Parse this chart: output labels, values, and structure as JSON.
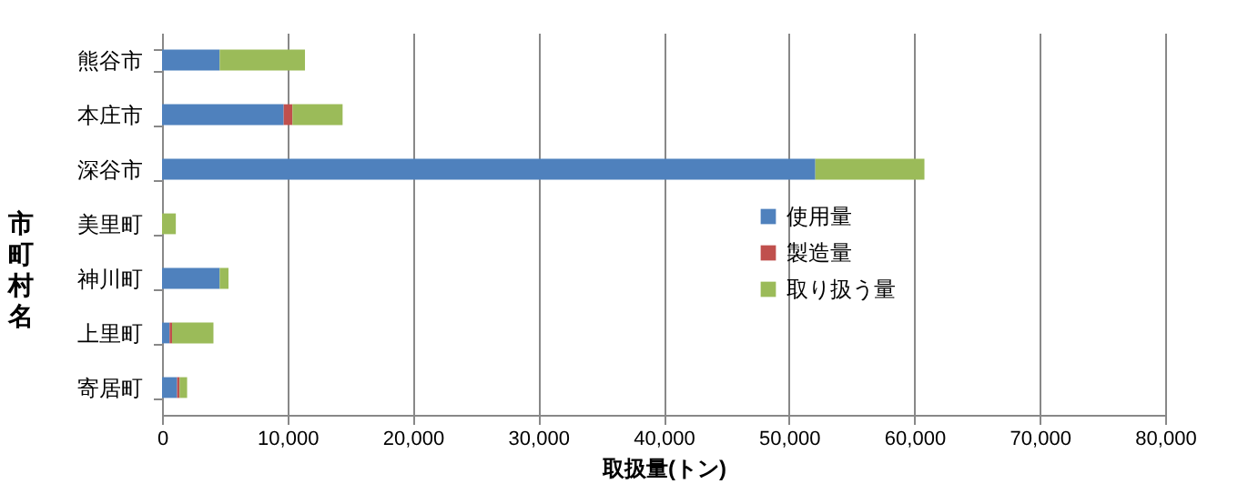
{
  "chart_data": {
    "type": "bar",
    "orientation": "horizontal",
    "stacked": true,
    "xlabel": "取扱量(トン)",
    "ylabel": "市町村名",
    "categories": [
      "熊谷市",
      "本庄市",
      "深谷市",
      "美里町",
      "神川町",
      "上里町",
      "寄居町"
    ],
    "series": [
      {
        "name": "使用量",
        "color": "#4f81bd",
        "values": [
          4600,
          9700,
          52100,
          0,
          4600,
          600,
          1200
        ]
      },
      {
        "name": "製造量",
        "color": "#c0504d",
        "values": [
          0,
          700,
          0,
          0,
          0,
          200,
          200
        ]
      },
      {
        "name": "取り扱う量",
        "color": "#9bbb59",
        "values": [
          6800,
          4000,
          8700,
          1100,
          700,
          3300,
          600
        ]
      }
    ],
    "xlim": [
      0,
      80000
    ],
    "xticks": [
      0,
      {
        "value": 10000,
        "label": "10,000"
      },
      {
        "value": 20000,
        "label": "20,000"
      },
      {
        "value": 30000,
        "label": "30,000"
      },
      {
        "value": 40000,
        "label": "40,000"
      },
      {
        "value": 50000,
        "label": "50,000"
      },
      {
        "value": 60000,
        "label": "60,000"
      },
      {
        "value": 70000,
        "label": "70,000"
      },
      {
        "value": 80000,
        "label": "80,000"
      }
    ],
    "grid": "x",
    "legend": "right"
  }
}
